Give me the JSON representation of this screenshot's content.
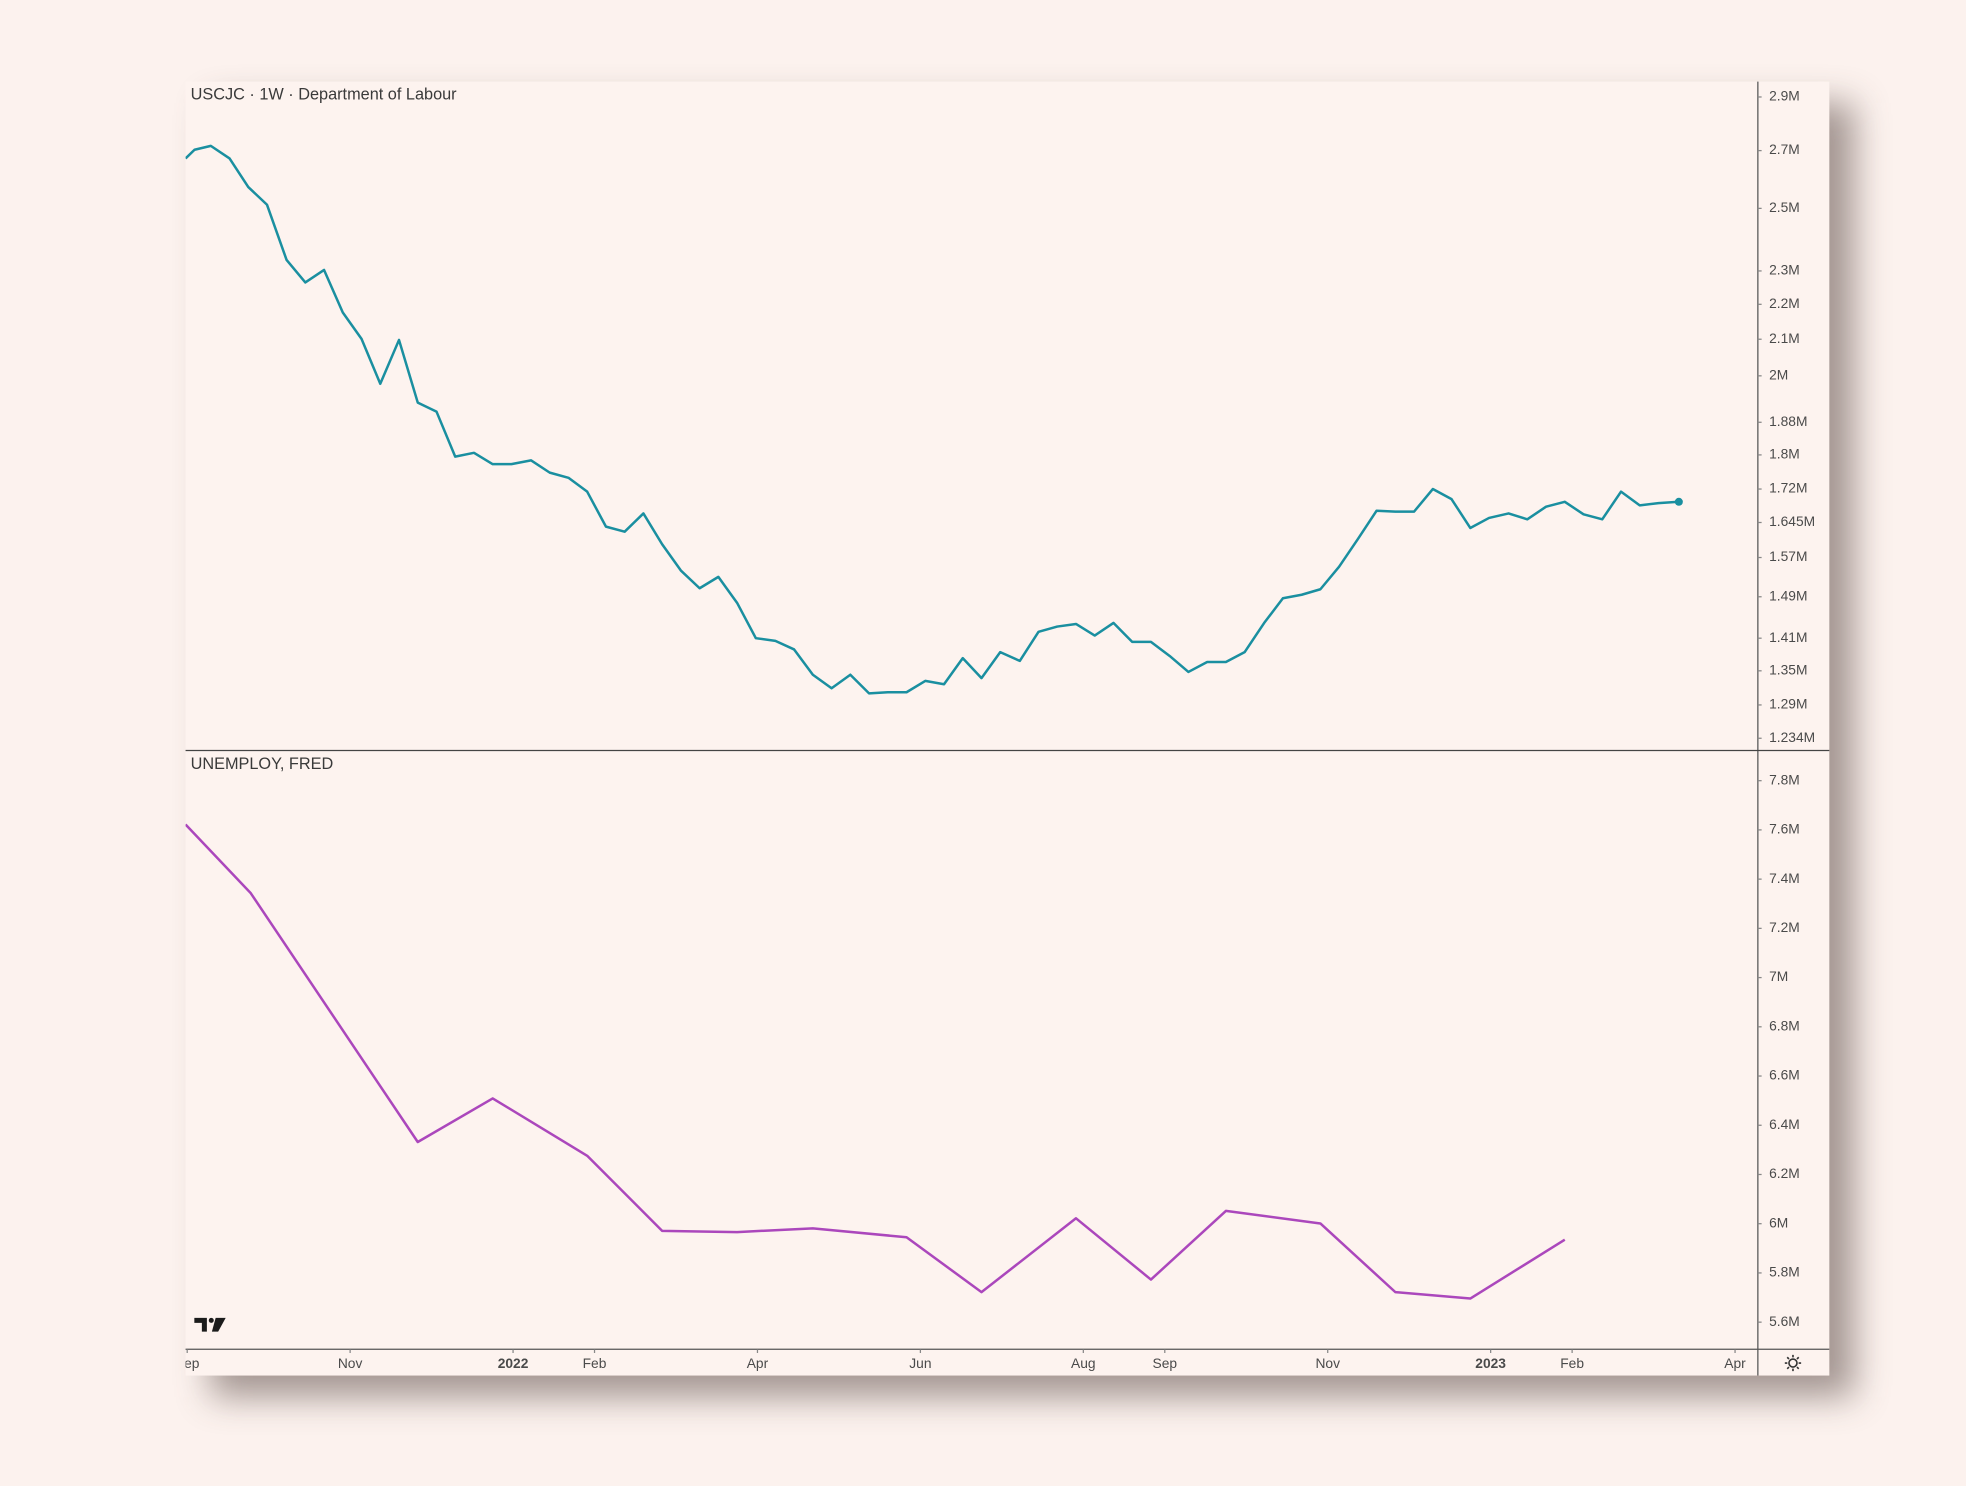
{
  "chart_data": [
    {
      "type": "line",
      "title": "USCJC · 1W · Department of Labour",
      "log_scale": true,
      "end_marker": true,
      "x": [
        -0.02,
        0.09,
        0.29,
        0.52,
        0.75,
        0.98,
        1.22,
        1.45,
        1.68,
        1.91,
        2.14,
        2.37,
        2.6,
        2.83,
        3.06,
        3.29,
        3.52,
        3.75,
        3.98,
        4.22,
        4.45,
        4.68,
        4.91,
        5.14,
        5.37,
        5.6,
        5.83,
        6.06,
        6.29,
        6.52,
        6.75,
        6.98,
        7.22,
        7.45,
        7.68,
        7.91,
        8.14,
        8.37,
        8.6,
        8.83,
        9.06,
        9.29,
        9.52,
        9.75,
        9.98,
        10.22,
        10.45,
        10.68,
        10.91,
        11.14,
        11.37,
        11.6,
        11.83,
        12.06,
        12.29,
        12.52,
        12.75,
        12.98,
        13.22,
        13.45,
        13.68,
        13.91,
        14.14,
        14.37,
        14.6,
        14.83,
        15.06,
        15.29,
        15.52,
        15.75,
        15.98,
        16.22,
        16.45,
        16.68,
        16.91,
        17.14,
        17.37,
        17.6,
        17.83,
        18.06,
        18.31
      ],
      "series": [
        {
          "color": "#1a8fa0",
          "values": [
            2672000,
            2703000,
            2717000,
            2672000,
            2572000,
            2512000,
            2334000,
            2265000,
            2303000,
            2176000,
            2101000,
            1979000,
            2098000,
            1930000,
            1907000,
            1796000,
            1805000,
            1778000,
            1778000,
            1787000,
            1758000,
            1746000,
            1714000,
            1636000,
            1625000,
            1665000,
            1598000,
            1543000,
            1507000,
            1530000,
            1478000,
            1410000,
            1405000,
            1389000,
            1343000,
            1319000,
            1343000,
            1310000,
            1312000,
            1312000,
            1332000,
            1326000,
            1373000,
            1337000,
            1384000,
            1368000,
            1422000,
            1432000,
            1437000,
            1415000,
            1439000,
            1403000,
            1403000,
            1377000,
            1348000,
            1366000,
            1366000,
            1384000,
            1439000,
            1487000,
            1494000,
            1505000,
            1551000,
            1609000,
            1671000,
            1669000,
            1669000,
            1720000,
            1697000,
            1633000,
            1655000,
            1665000,
            1652000,
            1680000,
            1691000,
            1663000,
            1652000,
            1714000,
            1683000,
            1688000,
            1691000
          ]
        }
      ],
      "xlim": [
        -0.02,
        19.28
      ],
      "ylim": [
        1215000,
        2960000
      ],
      "yticks": [
        {
          "value": 2900000,
          "label": "2.9M"
        },
        {
          "value": 2700000,
          "label": "2.7M"
        },
        {
          "value": 2500000,
          "label": "2.5M"
        },
        {
          "value": 2300000,
          "label": "2.3M"
        },
        {
          "value": 2200000,
          "label": "2.2M"
        },
        {
          "value": 2100000,
          "label": "2.1M"
        },
        {
          "value": 2000000,
          "label": "2M"
        },
        {
          "value": 1880000,
          "label": "1.88M"
        },
        {
          "value": 1800000,
          "label": "1.8M"
        },
        {
          "value": 1720000,
          "label": "1.72M"
        },
        {
          "value": 1645000,
          "label": "1.645M"
        },
        {
          "value": 1570000,
          "label": "1.57M"
        },
        {
          "value": 1490000,
          "label": "1.49M"
        },
        {
          "value": 1410000,
          "label": "1.41M"
        },
        {
          "value": 1350000,
          "label": "1.35M"
        },
        {
          "value": 1290000,
          "label": "1.29M"
        },
        {
          "value": 1234000,
          "label": "1.234M"
        }
      ]
    },
    {
      "type": "line",
      "title": "UNEMPLOY, FRED",
      "x": [
        -0.02,
        0.78,
        2.83,
        3.75,
        4.91,
        5.83,
        6.75,
        7.68,
        8.83,
        9.75,
        10.91,
        11.83,
        12.75,
        13.91,
        14.83,
        15.75,
        16.91
      ],
      "series": [
        {
          "color": "#ab47bc",
          "values": [
            7622000,
            7343000,
            6332000,
            6509000,
            6276000,
            5971000,
            5966000,
            5981000,
            5945000,
            5722000,
            6022000,
            5773000,
            6052000,
            6001000,
            5722000,
            5696000,
            5935000
          ]
        }
      ],
      "xlim": [
        -0.02,
        19.28
      ],
      "ylim": [
        5490000,
        7920000
      ],
      "yticks": [
        {
          "value": 7800000,
          "label": "7.8M"
        },
        {
          "value": 7600000,
          "label": "7.6M"
        },
        {
          "value": 7400000,
          "label": "7.4M"
        },
        {
          "value": 7200000,
          "label": "7.2M"
        },
        {
          "value": 7000000,
          "label": "7M"
        },
        {
          "value": 6800000,
          "label": "6.8M"
        },
        {
          "value": 6600000,
          "label": "6.6M"
        },
        {
          "value": 6400000,
          "label": "6.4M"
        },
        {
          "value": 6200000,
          "label": "6.2M"
        },
        {
          "value": 6000000,
          "label": "6M"
        },
        {
          "value": 5800000,
          "label": "5.8M"
        },
        {
          "value": 5600000,
          "label": "5.6M"
        }
      ],
      "xticks": [
        {
          "value": 0,
          "label": "Sep"
        },
        {
          "value": 2,
          "label": "Nov"
        },
        {
          "value": 4,
          "label": "2022"
        },
        {
          "value": 5,
          "label": "Feb"
        },
        {
          "value": 7,
          "label": "Apr"
        },
        {
          "value": 9,
          "label": "Jun"
        },
        {
          "value": 11,
          "label": "Aug"
        },
        {
          "value": 12,
          "label": "Sep"
        },
        {
          "value": 14,
          "label": "Nov"
        },
        {
          "value": 16,
          "label": "2023"
        },
        {
          "value": 17,
          "label": "Feb"
        },
        {
          "value": 19,
          "label": "Apr"
        }
      ]
    }
  ]
}
